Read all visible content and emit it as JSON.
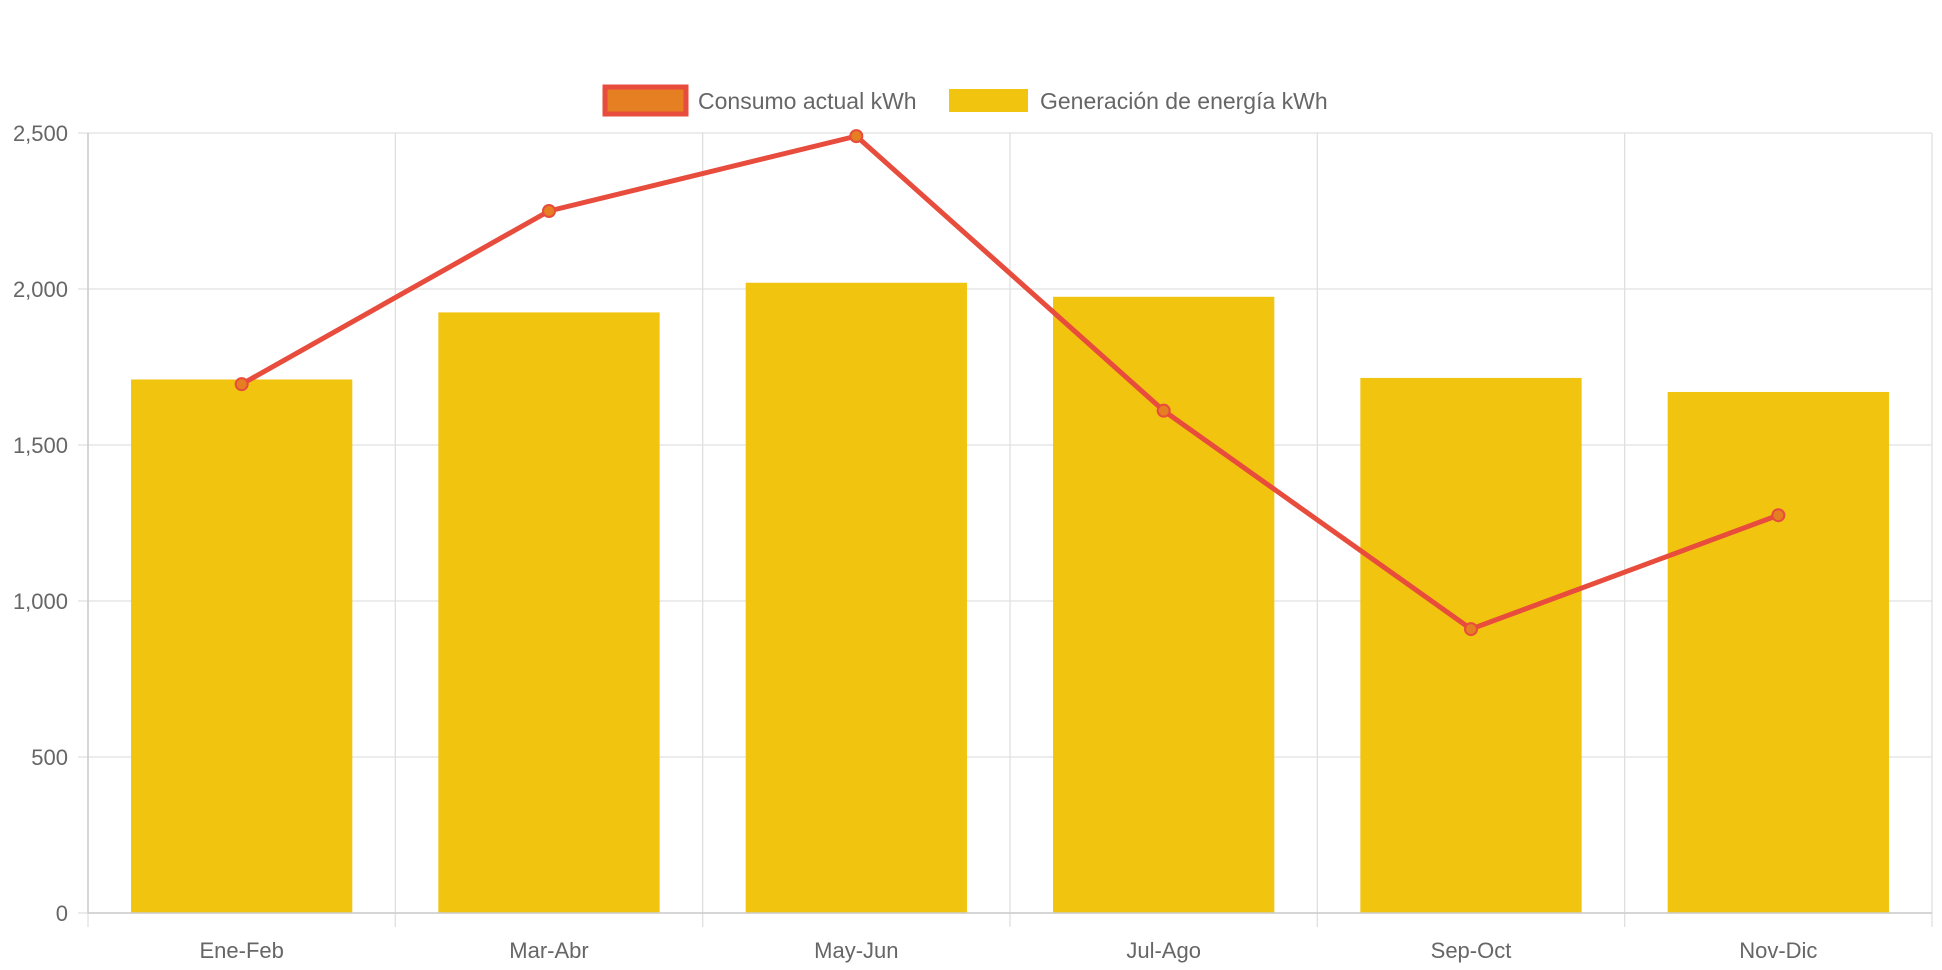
{
  "chart_data": {
    "type": "bar",
    "title": "",
    "xlabel": "",
    "ylabel": "",
    "categories": [
      "Ene-Feb",
      "Mar-Abr",
      "May-Jun",
      "Jul-Ago",
      "Sep-Oct",
      "Nov-Dic"
    ],
    "ylim": [
      0,
      2500
    ],
    "yticks": [
      0,
      500,
      1000,
      1500,
      2000,
      2500
    ],
    "ytick_labels": [
      "0",
      "500",
      "1,000",
      "1,500",
      "2,000",
      "2,500"
    ],
    "grid": true,
    "legend_position": "top-center",
    "series": [
      {
        "name": "Consumo actual kWh",
        "type": "line",
        "color": "#e74c3c",
        "point_color": "#e67e22",
        "values": [
          1695,
          2250,
          2490,
          1610,
          910,
          1275
        ]
      },
      {
        "name": "Generación de energía kWh",
        "type": "bar",
        "color": "#f1c40f",
        "values": [
          1710,
          1925,
          2020,
          1975,
          1715,
          1670
        ]
      }
    ]
  }
}
